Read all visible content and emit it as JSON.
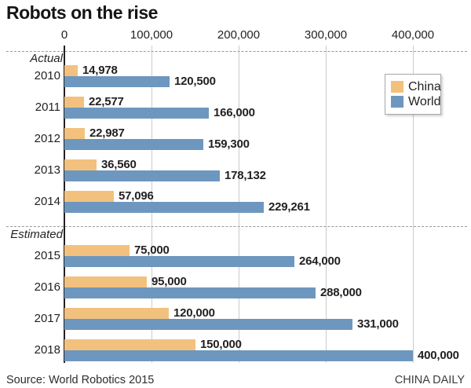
{
  "title": "Robots on the rise",
  "source": "Source: World Robotics 2015",
  "credit": "CHINA DAILY",
  "colors": {
    "china": "#f3c17e",
    "world": "#6d97be",
    "axis": "#231f20",
    "gridline": "#cbcbcb",
    "dashed": "#9a9a9a",
    "text": "#231f20"
  },
  "legend": {
    "items": [
      {
        "label": "China",
        "color_key": "china"
      },
      {
        "label": "World",
        "color_key": "world"
      }
    ]
  },
  "chart_data": {
    "type": "bar",
    "orientation": "horizontal",
    "title": "Robots on the rise",
    "legend_position": "right-top",
    "grid": true,
    "axis": {
      "ticks": [
        0,
        100000,
        200000,
        300000,
        400000
      ],
      "tick_labels": [
        "0",
        "100,000",
        "200,000",
        "300,000",
        "400,000"
      ],
      "range": [
        0,
        462000
      ]
    },
    "series_names": [
      "China",
      "World"
    ],
    "sections": [
      {
        "label": "Actual",
        "rows": [
          {
            "year": "2010",
            "china": 14978,
            "world": 120500,
            "china_label": "14,978",
            "world_label": "120,500"
          },
          {
            "year": "2011",
            "china": 22577,
            "world": 166000,
            "china_label": "22,577",
            "world_label": "166,000"
          },
          {
            "year": "2012",
            "china": 22987,
            "world": 159300,
            "china_label": "22,987",
            "world_label": "159,300"
          },
          {
            "year": "2013",
            "china": 36560,
            "world": 178132,
            "china_label": "36,560",
            "world_label": "178,132"
          },
          {
            "year": "2014",
            "china": 57096,
            "world": 229261,
            "china_label": "57,096",
            "world_label": "229,261"
          }
        ]
      },
      {
        "label": "Estimated",
        "rows": [
          {
            "year": "2015",
            "china": 75000,
            "world": 264000,
            "china_label": "75,000",
            "world_label": "264,000"
          },
          {
            "year": "2016",
            "china": 95000,
            "world": 288000,
            "china_label": "95,000",
            "world_label": "288,000"
          },
          {
            "year": "2017",
            "china": 120000,
            "world": 331000,
            "china_label": "120,000",
            "world_label": "331,000"
          },
          {
            "year": "2018",
            "china": 150000,
            "world": 400000,
            "china_label": "150,000",
            "world_label": "400,000"
          }
        ]
      }
    ]
  }
}
